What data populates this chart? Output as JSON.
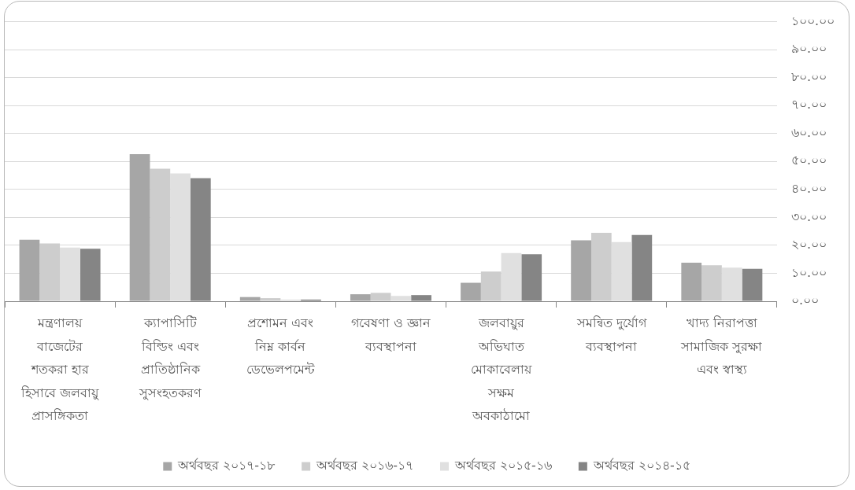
{
  "chart_data": {
    "type": "bar",
    "categories": [
      "মন্ত্রণালয় বাজেটের শতকরা হার হিসাবে জলবায়ু প্রাসঙ্গিকতা",
      "ক্যাপাসিটি বিল্ডিং এবং প্রাতিষ্ঠানিক সুসংহতকরণ",
      "প্রশোমন এবং নিম্ন কার্বন ডেভেলপমেন্ট",
      "গবেষণা ও জ্ঞান ব্যবস্থাপনা",
      "জলবায়ুর অভিঘাত মোকাবেলায় সক্ষম অবকাঠামো",
      "সমন্বিত দুর্যোগ ব্যবস্থাপনা",
      "খাদ্য নিরাপত্তা সামাজিক সুরক্ষা এবং স্বাস্থ্য"
    ],
    "series": [
      {
        "name": "অর্থবছর ২০১৭-১৮",
        "color": "#a6a6a6",
        "values": [
          22.0,
          52.6,
          1.5,
          2.5,
          6.6,
          21.8,
          13.8
        ]
      },
      {
        "name": "অর্থবছর ২০১৬-১৭",
        "color": "#cdcdcd",
        "values": [
          20.7,
          47.4,
          1.1,
          3.0,
          10.6,
          24.5,
          12.9
        ]
      },
      {
        "name": "অর্থবছর ২০১৫-১৬",
        "color": "#e0e0e0",
        "values": [
          19.2,
          45.7,
          0.6,
          1.9,
          17.2,
          21.2,
          12.0
        ]
      },
      {
        "name": "অর্থবছর ২০১৪-১৫",
        "color": "#858585",
        "values": [
          18.8,
          44.0,
          0.6,
          2.2,
          16.8,
          23.7,
          11.6
        ]
      }
    ],
    "ylim": [
      0,
      100
    ],
    "yticks": [
      {
        "value": 0,
        "label": "০.০০"
      },
      {
        "value": 10,
        "label": "১০.০০"
      },
      {
        "value": 20,
        "label": "২০.০০"
      },
      {
        "value": 30,
        "label": "৩০.০০"
      },
      {
        "value": 40,
        "label": "৪০.০০"
      },
      {
        "value": 50,
        "label": "৫০.০০"
      },
      {
        "value": 60,
        "label": "৬০.০০"
      },
      {
        "value": 70,
        "label": "৭০.০০"
      },
      {
        "value": 80,
        "label": "৮০.০০"
      },
      {
        "value": 90,
        "label": "৯০.০০"
      },
      {
        "value": 100,
        "label": "১০০.০০"
      }
    ],
    "grid": "y",
    "legend": "bottom"
  }
}
